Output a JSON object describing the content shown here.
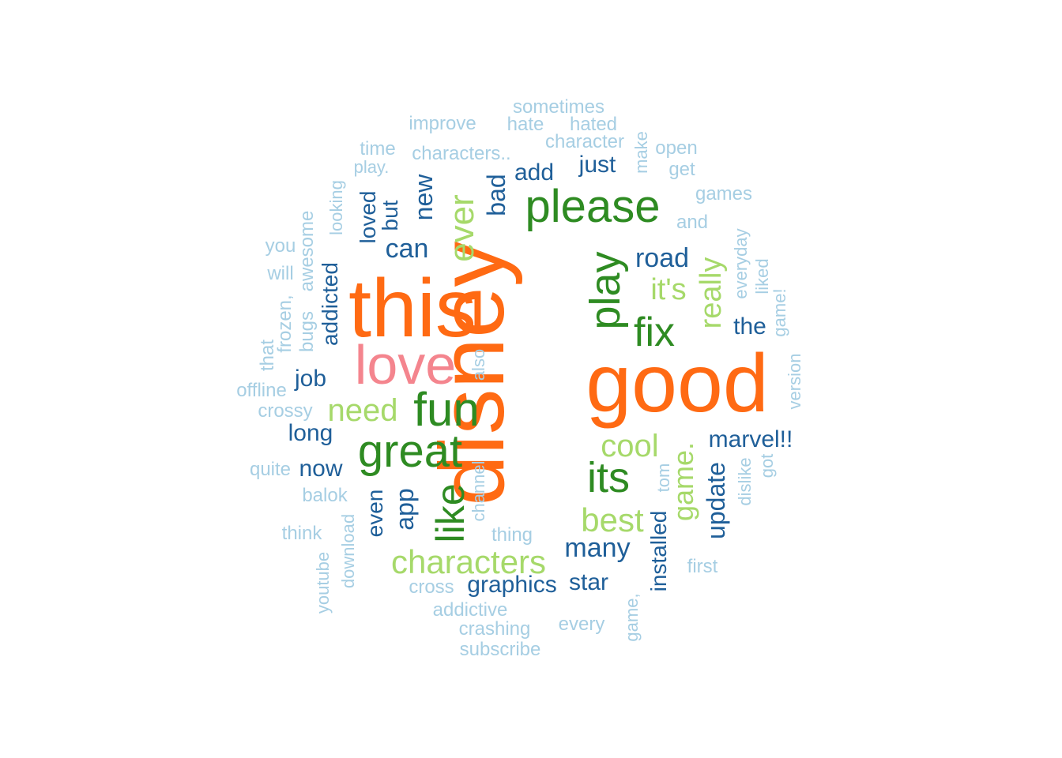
{
  "palette": {
    "light_blue": "#a6cee3",
    "dark_blue": "#1f5f99",
    "light_green": "#a6d96a",
    "dark_green": "#2e8b22",
    "pink": "#f4858e",
    "orange": "#ff6a13"
  },
  "words": [
    "disney",
    "good",
    "this",
    "love",
    "please",
    "fun",
    "great",
    "play",
    "its",
    "fix",
    "like",
    "ever",
    "best",
    "characters",
    "cool",
    "need",
    "really",
    "it's",
    "game.",
    "road",
    "many",
    "update",
    "can",
    "new",
    "bad",
    "marvel!!",
    "add",
    "just",
    "the",
    "app",
    "graphics",
    "star",
    "installed",
    "loved",
    "but",
    "addicted",
    "even",
    "job",
    "long",
    "now",
    "sometimes",
    "hate",
    "hated",
    "improve",
    "character",
    "characters..",
    "time",
    "play.",
    "open",
    "make",
    "get",
    "games",
    "and",
    "looking",
    "awesome",
    "you",
    "will",
    "everyday",
    "liked",
    "game!",
    "bugs",
    "frozen,",
    "that",
    "offline",
    "crossy",
    "version",
    "also",
    "channel",
    "tom",
    "dislike",
    "got",
    "quite",
    "balok",
    "think",
    "download",
    "youtube",
    "thing",
    "first",
    "cross",
    "addictive",
    "crashing",
    "every",
    "game,",
    "subscribe"
  ]
}
